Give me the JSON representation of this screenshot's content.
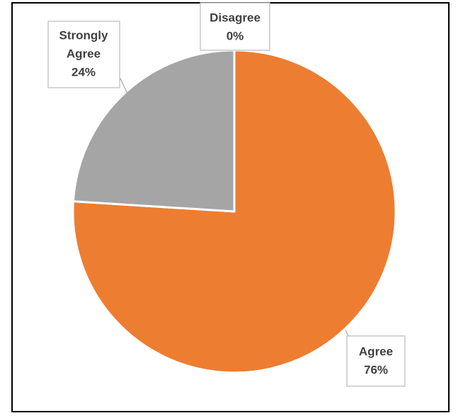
{
  "chart_data": {
    "type": "pie",
    "title": "",
    "categories": [
      "Agree",
      "Strongly Agree",
      "Disagree"
    ],
    "values": [
      76,
      24,
      0
    ],
    "value_labels": [
      "76%",
      "24%",
      "0%"
    ],
    "colors": [
      "#ed7d31",
      "#a5a5a5",
      "#4472c4"
    ],
    "start_angle_deg": 0,
    "direction": "clockwise",
    "legend": "none",
    "data_labels": {
      "agree": {
        "line1": "Agree",
        "line2": "76%"
      },
      "strongly_agree": {
        "line1": "Strongly",
        "line2": "Agree",
        "line3": "24%"
      },
      "disagree": {
        "line1": "Disagree",
        "line2": "0%"
      }
    }
  }
}
